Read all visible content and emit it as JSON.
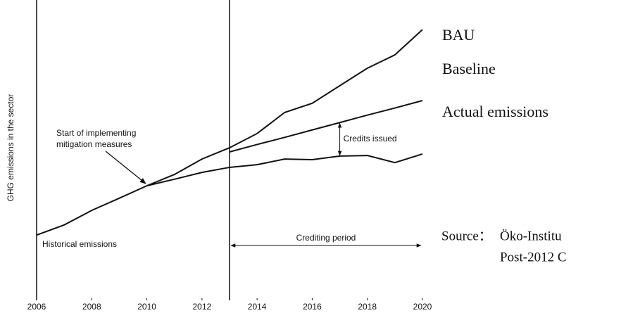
{
  "chart_data": {
    "type": "line",
    "ylabel": "GHG emissions in the sector",
    "x": [
      2006,
      2007,
      2008,
      2009,
      2010,
      2011,
      2012,
      2013,
      2014,
      2015,
      2016,
      2017,
      2018,
      2019,
      2020
    ],
    "xlim": [
      2006,
      2020
    ],
    "xticks": [
      2006,
      2008,
      2010,
      2012,
      2014,
      2016,
      2018,
      2020
    ],
    "ylim": [
      0,
      100
    ],
    "period_start": 2013,
    "series": [
      {
        "name": "BAU",
        "color": "#111111",
        "values": [
          22.0,
          25.4,
          30.3,
          34.4,
          38.6,
          42.4,
          47.6,
          51.4,
          56.2,
          63.3,
          66.4,
          72.3,
          78.2,
          82.7,
          91.2
        ]
      },
      {
        "name": "Baseline",
        "color": "#111111",
        "values": [
          null,
          null,
          null,
          null,
          null,
          null,
          null,
          50.0,
          52.5,
          54.9,
          57.4,
          59.9,
          62.4,
          64.8,
          67.3
        ]
      },
      {
        "name": "Actual emissions",
        "color": "#111111",
        "values": [
          null,
          null,
          null,
          null,
          38.6,
          40.8,
          43.1,
          44.8,
          45.7,
          47.6,
          47.4,
          48.6,
          48.8,
          46.4,
          49.3
        ]
      }
    ],
    "annotations": {
      "start_line1": "Start of implementing",
      "start_line2": "mitigation measures",
      "credits": "Credits issued",
      "historical": "Historical emissions",
      "crediting": "Crediting period"
    },
    "source": {
      "label": "Source：",
      "line1": "Öko-Institu",
      "line2": "Post-2012 C"
    }
  }
}
